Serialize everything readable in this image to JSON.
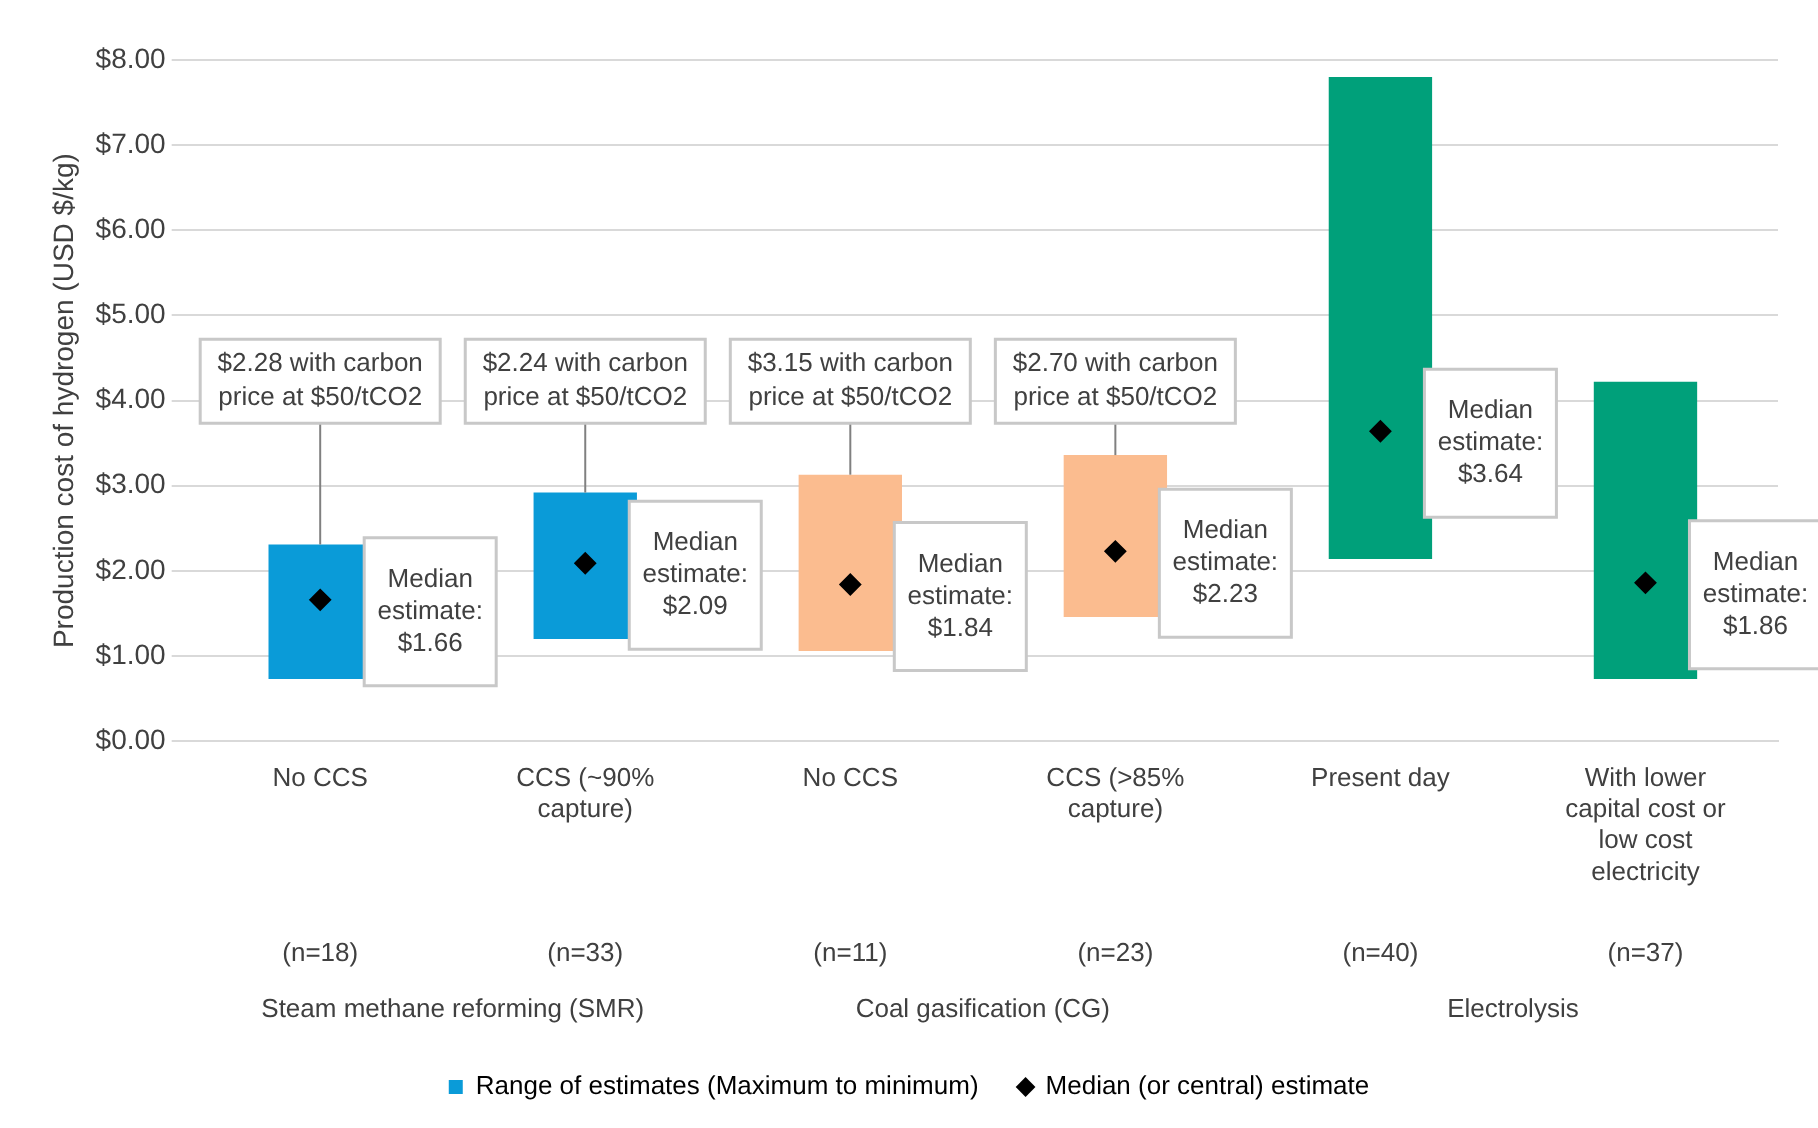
{
  "chart_data": {
    "type": "bar",
    "ylabel": "Production cost of hydrogen (USD $/kg)",
    "categories": [
      "No CCS",
      "CCS (~90% capture)",
      "No CCS",
      "CCS (>85% capture)",
      "Present day",
      "With lower capital cost or low cost electricity"
    ],
    "series": [
      {
        "name": "Range of estimates (Maximum to minimum)",
        "base": [
          0.73,
          1.2,
          1.06,
          1.46,
          2.14,
          0.73
        ],
        "color": "#0a9bd8",
        "colors": [
          "#0a9bd8",
          "#0a9bd8",
          "#fbbc8f",
          "#fbbc8f",
          "#00a07a",
          "#00a07a"
        ],
        "values": [
          1.58,
          1.72,
          2.07,
          1.9,
          5.66,
          3.49
        ]
      },
      {
        "name": "Median (or central) estimate",
        "type": "scatter",
        "color": "#000000",
        "values": [
          1.66,
          2.09,
          1.84,
          2.23,
          3.64,
          1.86
        ],
        "value_labels": [
          "Median estimate: $1.66",
          "Median estimate: $2.09",
          "Median estimate: $1.84",
          "Median estimate: $2.23",
          "Median estimate: $3.64",
          "Median estimate: $1.86"
        ]
      }
    ],
    "marker": "diamond",
    "ylim": [
      0,
      8
    ],
    "yticks": [
      {
        "value": 0,
        "label": "$0.00"
      },
      {
        "value": 1,
        "label": "$1.00"
      },
      {
        "value": 2,
        "label": "$2.00"
      },
      {
        "value": 3,
        "label": "$3.00"
      },
      {
        "value": 4,
        "label": "$4.00"
      },
      {
        "value": 5,
        "label": "$5.00"
      },
      {
        "value": 6,
        "label": "$6.00"
      },
      {
        "value": 7,
        "label": "$7.00"
      },
      {
        "value": 8,
        "label": "$8.00"
      }
    ],
    "grid": "y",
    "legend": "bottom",
    "annotations": [
      "(n=18)",
      "(n=33)",
      "(n=11)",
      "(n=23)",
      "(n=40)",
      "(n=37)",
      "Steam methane reforming (SMR)",
      "Coal gasification (CG)",
      "Electrolysis",
      {
        "text": "$2.28 with carbon price at $50/tCO2",
        "y": 2.31
      },
      {
        "text": "$2.24 with carbon price at $50/tCO2",
        "y": 2.92
      },
      {
        "text": "$3.15 with carbon price at $50/tCO2",
        "y": 3.13
      },
      {
        "text": "$2.70 with carbon price at $50/tCO2",
        "y": 3.36
      }
    ]
  }
}
